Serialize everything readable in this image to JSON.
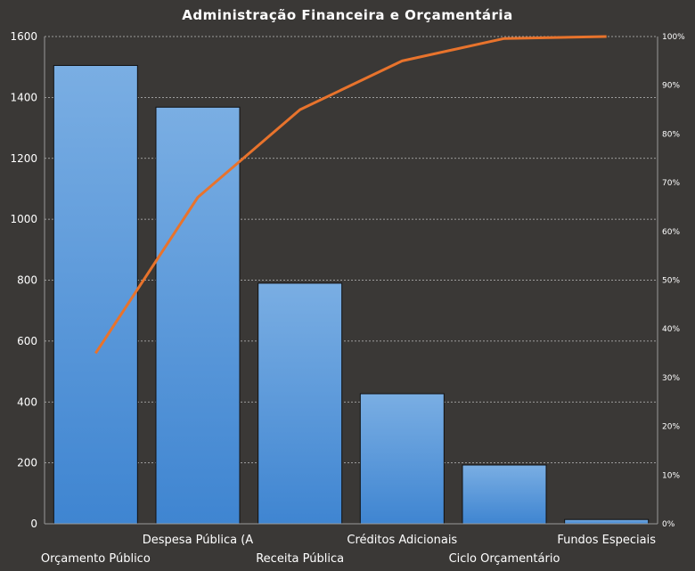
{
  "chart_data": {
    "type": "bar",
    "title": "Administração  Financeira  e Orçamentária",
    "categories": [
      "Orçamento  Público",
      "Despesa Pública (A",
      "Receita Pública",
      "Créditos Adicionais",
      "Ciclo Orçamentário",
      "Fundos  Especiais"
    ],
    "series": [
      {
        "type": "bar",
        "axis": "left",
        "values": [
          1505,
          1368,
          790,
          427,
          193,
          14
        ]
      },
      {
        "type": "line",
        "axis": "right",
        "values": [
          35,
          67,
          85,
          95,
          99.6,
          100
        ]
      }
    ],
    "y_left": {
      "min": 0,
      "max": 1600,
      "ticks": [
        "0",
        "200",
        "400",
        "600",
        "800",
        "1000",
        "1200",
        "1400",
        "1600"
      ]
    },
    "y_right": {
      "min": 0,
      "max": 100,
      "ticks": [
        "0%",
        "10%",
        "20%",
        "30%",
        "40%",
        "50%",
        "60%",
        "70%",
        "80%",
        "90%",
        "100%"
      ]
    },
    "grid": true,
    "colors": {
      "bar": "#4a90d9",
      "bar_light": "#7aaee3",
      "line": "#e8732c",
      "background": "#3a3836",
      "grid": "#bdbdbd",
      "text": "#ffffff"
    }
  }
}
